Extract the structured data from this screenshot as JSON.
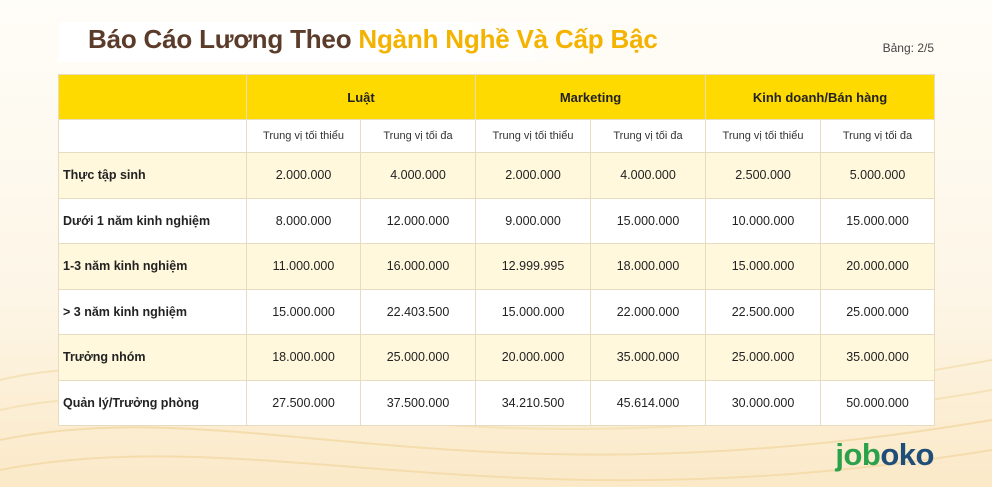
{
  "header": {
    "title_prefix": "Báo Cáo Lương Theo ",
    "title_highlight": "Ngành Nghề Và Cấp Bậc",
    "table_number": "Bảng: 2/5"
  },
  "table": {
    "groups": [
      "Luật",
      "Marketing",
      "Kinh doanh/Bán hàng"
    ],
    "sub_headers": [
      "Trung vị tối thiểu",
      "Trung vị tối đa",
      "Trung vị tối thiểu",
      "Trung vị tối đa",
      "Trung vị tối thiểu",
      "Trung vị tối đa"
    ],
    "rows": [
      {
        "label": "Thực tập sinh",
        "values": [
          "2.000.000",
          "4.000.000",
          "2.000.000",
          "4.000.000",
          "2.500.000",
          "5.000.000"
        ]
      },
      {
        "label": "Dưới 1 năm kinh nghiệm",
        "values": [
          "8.000.000",
          "12.000.000",
          "9.000.000",
          "15.000.000",
          "10.000.000",
          "15.000.000"
        ]
      },
      {
        "label": "1-3 năm kinh nghiệm",
        "values": [
          "11.000.000",
          "16.000.000",
          "12.999.995",
          "18.000.000",
          "15.000.000",
          "20.000.000"
        ]
      },
      {
        "label": "> 3 năm kinh nghiệm",
        "values": [
          "15.000.000",
          "22.403.500",
          "15.000.000",
          "22.000.000",
          "22.500.000",
          "25.000.000"
        ]
      },
      {
        "label": "Trưởng nhóm",
        "values": [
          "18.000.000",
          "25.000.000",
          "20.000.000",
          "35.000.000",
          "25.000.000",
          "35.000.000"
        ]
      },
      {
        "label": "Quản lý/Trưởng phòng",
        "values": [
          "27.500.000",
          "37.500.000",
          "34.210.500",
          "45.614.000",
          "30.000.000",
          "50.000.000"
        ]
      }
    ]
  },
  "logo": {
    "part_green": "job",
    "part_blue": "oko"
  },
  "colors": {
    "accent": "#ffda00",
    "title_highlight": "#f3b300",
    "title": "#5b3b2a",
    "logo_green": "#2aa14a",
    "logo_blue": "#1f4e79"
  }
}
